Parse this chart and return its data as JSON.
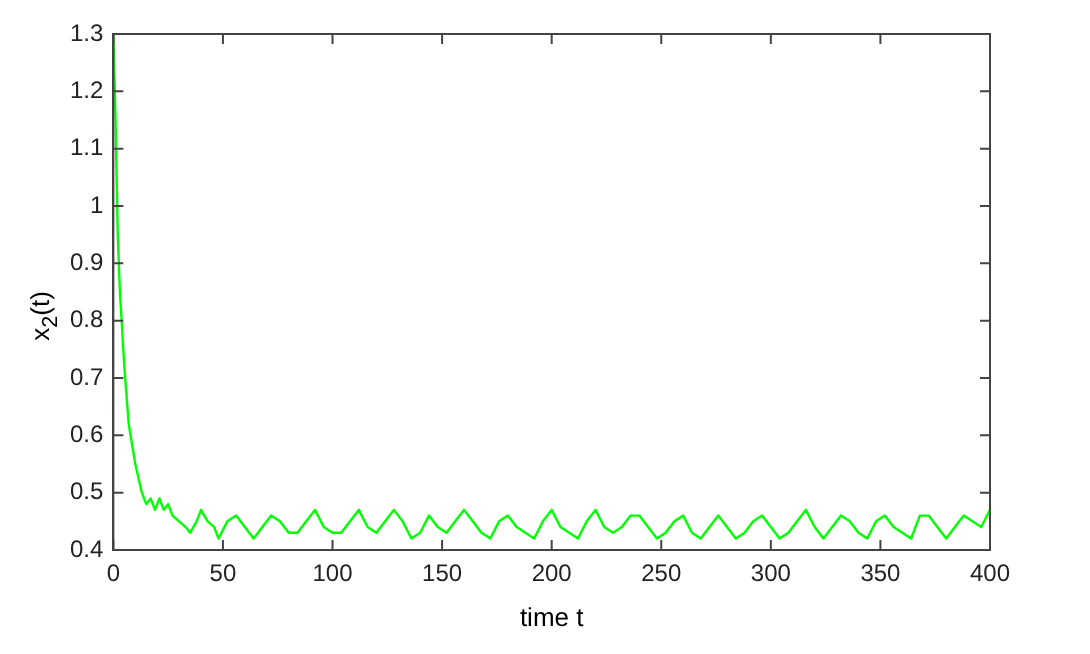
{
  "chart_data": {
    "type": "line",
    "xlabel": "time t",
    "ylabel": "x$_{2}$(t)",
    "xlim": [
      0,
      400
    ],
    "xticks": [
      0,
      50,
      100,
      150,
      200,
      250,
      300,
      350,
      400
    ],
    "ylim": [
      0.4,
      1.3
    ],
    "yticks": [
      0.4,
      0.5,
      0.6,
      0.7,
      0.8,
      0.9,
      1,
      1.1,
      1.2,
      1.3
    ],
    "grid": false,
    "legend": false,
    "marker": "none",
    "line_style": "solid",
    "series": [
      {
        "color": "#00ff00",
        "x": [
          0,
          1,
          2,
          3,
          5,
          7,
          10,
          13,
          15,
          17,
          19,
          21,
          23,
          25,
          27,
          30,
          33,
          35,
          38,
          40,
          43,
          46,
          48,
          52,
          56,
          60,
          64,
          68,
          72,
          76,
          80,
          84,
          88,
          92,
          96,
          100,
          104,
          108,
          112,
          116,
          120,
          124,
          128,
          132,
          136,
          140,
          144,
          148,
          152,
          156,
          160,
          164,
          168,
          172,
          176,
          180,
          184,
          188,
          192,
          196,
          200,
          204,
          208,
          212,
          216,
          220,
          224,
          228,
          232,
          236,
          240,
          244,
          248,
          252,
          256,
          260,
          264,
          268,
          272,
          276,
          280,
          284,
          288,
          292,
          296,
          300,
          304,
          308,
          312,
          316,
          320,
          324,
          328,
          332,
          336,
          340,
          344,
          348,
          352,
          356,
          360,
          364,
          368,
          372,
          376,
          380,
          384,
          388,
          392,
          396,
          400
        ],
        "values": [
          1.3,
          1.15,
          0.95,
          0.85,
          0.72,
          0.62,
          0.55,
          0.5,
          0.48,
          0.49,
          0.47,
          0.49,
          0.47,
          0.48,
          0.46,
          0.45,
          0.44,
          0.43,
          0.45,
          0.47,
          0.45,
          0.44,
          0.42,
          0.45,
          0.46,
          0.44,
          0.42,
          0.44,
          0.46,
          0.45,
          0.43,
          0.43,
          0.45,
          0.47,
          0.44,
          0.43,
          0.43,
          0.45,
          0.47,
          0.44,
          0.43,
          0.45,
          0.47,
          0.45,
          0.42,
          0.43,
          0.46,
          0.44,
          0.43,
          0.45,
          0.47,
          0.45,
          0.43,
          0.42,
          0.45,
          0.46,
          0.44,
          0.43,
          0.42,
          0.45,
          0.47,
          0.44,
          0.43,
          0.42,
          0.45,
          0.47,
          0.44,
          0.43,
          0.44,
          0.46,
          0.46,
          0.44,
          0.42,
          0.43,
          0.45,
          0.46,
          0.43,
          0.42,
          0.44,
          0.46,
          0.44,
          0.42,
          0.43,
          0.45,
          0.46,
          0.44,
          0.42,
          0.43,
          0.45,
          0.47,
          0.44,
          0.42,
          0.44,
          0.46,
          0.45,
          0.43,
          0.42,
          0.45,
          0.46,
          0.44,
          0.43,
          0.42,
          0.46,
          0.46,
          0.44,
          0.42,
          0.44,
          0.46,
          0.45,
          0.44,
          0.47
        ]
      }
    ]
  }
}
